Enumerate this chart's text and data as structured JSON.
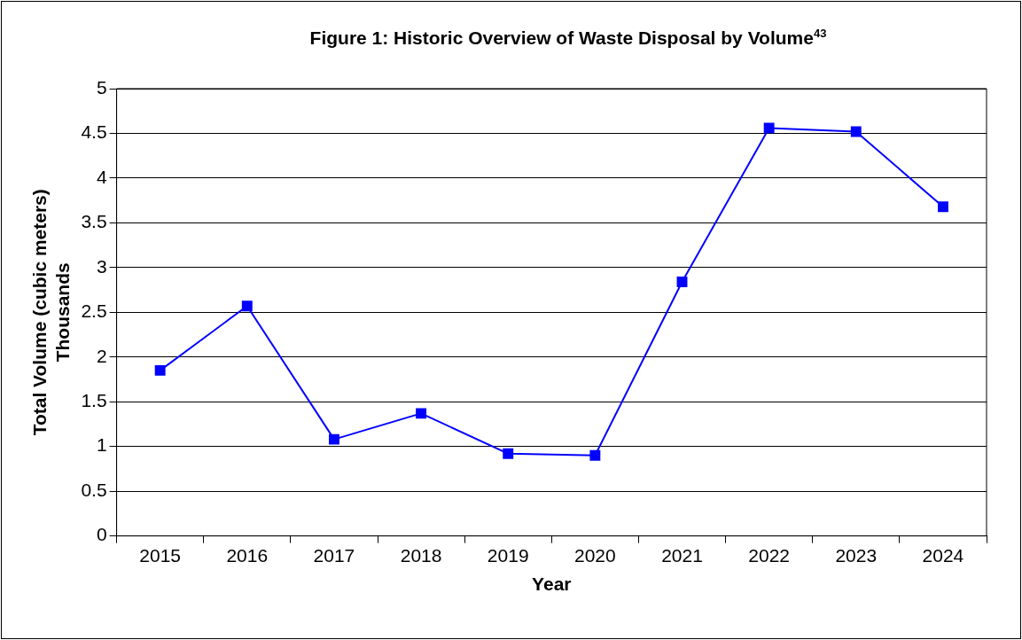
{
  "chart_data": {
    "type": "line",
    "title": "Figure 1:  Historic Overview of Waste Disposal by Volume$^{43}$",
    "xlabel": "Year",
    "ylabel": "Total Volume (cubic meters)\nThousands",
    "categories": [
      "2015",
      "2016",
      "2017",
      "2018",
      "2019",
      "2020",
      "2021",
      "2022",
      "2023",
      "2024"
    ],
    "values": [
      1.85,
      2.57,
      1.08,
      1.37,
      0.92,
      0.9,
      2.84,
      4.56,
      4.52,
      3.68
    ],
    "color": "#0000ff",
    "marker": "square",
    "line_style": "solid",
    "ylim": [
      0,
      5
    ],
    "yticks": [
      0,
      0.5,
      1,
      1.5,
      2,
      2.5,
      3,
      3.5,
      4,
      4.5,
      5
    ],
    "grid": "y",
    "legend": false
  }
}
